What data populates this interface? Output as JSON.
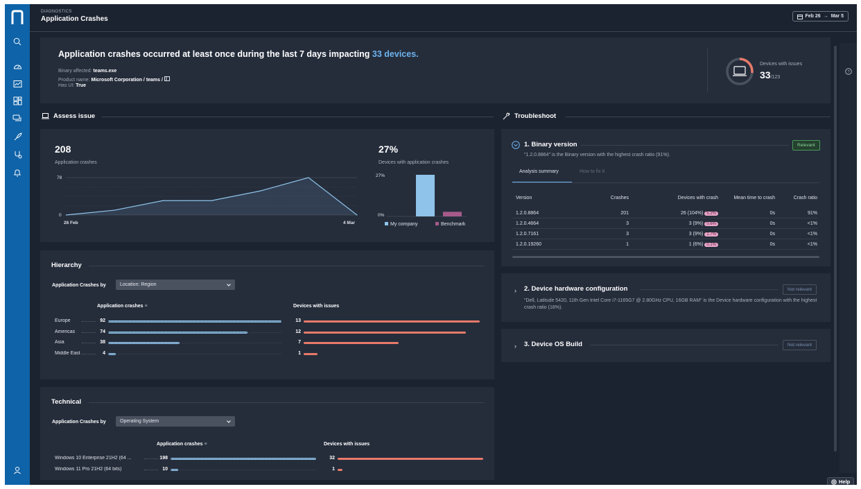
{
  "header": {
    "eyebrow": "DIAGNOSTICS",
    "title": "Application Crashes",
    "date_start": "Feb 26",
    "date_arrow": "→",
    "date_end": "Mar 5"
  },
  "summary": {
    "title_prefix": "Application crashes occurred at least once during the last 7 days impacting",
    "title_highlight": "33 devices.",
    "binary_label": "Binary affected:",
    "binary_value": "teams.exe",
    "product_label": "Product name:",
    "product_value": "Microsoft Corporation / teams /",
    "hasui_label": "Has UI:",
    "hasui_value": "True",
    "devices_label": "Devices with issues",
    "devices_count": "33",
    "devices_total": "/123",
    "devices_fraction": 0.268
  },
  "assess": {
    "heading": "Assess issue",
    "crashes_value": "208",
    "crashes_label": "Application crashes",
    "pct_value": "27%",
    "pct_label": "Devices with application crashes",
    "line_y_top": "78",
    "line_y_bottom": "0",
    "line_x_start": "26 Feb",
    "line_x_end": "4 Mar",
    "bar_y_top": "27%",
    "bar_y_bottom": "0%",
    "legend_mycompany": "My company",
    "legend_benchmark": "Benchmark"
  },
  "chart_data": [
    {
      "type": "line",
      "series": [
        {
          "values": [
            0,
            10,
            30,
            30,
            50,
            78,
            0
          ]
        }
      ],
      "ylim": [
        0,
        78
      ],
      "x_labels": [
        "26 Feb",
        "4 Mar"
      ]
    },
    {
      "type": "bar",
      "categories": [
        "My company",
        "Benchmark"
      ],
      "values": [
        27,
        3
      ],
      "ylim": [
        0,
        27
      ]
    }
  ],
  "hierarchy": {
    "heading": "Hierarchy",
    "by_label": "Application Crashes by",
    "select": "Location: Region",
    "col1": "Application crashes",
    "col2": "Devices with issues",
    "rows": [
      {
        "name": "Europe",
        "crashes": "92",
        "devices": "13"
      },
      {
        "name": "Americas",
        "crashes": "74",
        "devices": "12"
      },
      {
        "name": "Asia",
        "crashes": "38",
        "devices": "7"
      },
      {
        "name": "Middle East",
        "crashes": "4",
        "devices": "1"
      }
    ]
  },
  "technical": {
    "heading": "Technical",
    "by_label": "Application Crashes by",
    "select": "Operating System",
    "col1": "Application crashes",
    "col2": "Devices with issues",
    "rows": [
      {
        "name": "Windows 10 Enterprise 21H2 (64 ...",
        "crashes": "198",
        "devices": "32"
      },
      {
        "name": "Windows 11 Pro 21H2 (64 bits)",
        "crashes": "10",
        "devices": "1"
      }
    ]
  },
  "troubleshoot": {
    "heading": "Troubleshoot",
    "s1_title": "1. Binary version",
    "s1_badge": "Relevant",
    "s1_desc": "\"1.2.0.8864\" is the Binary version with the highest crash ratio (91%).",
    "tab_active": "Analysis summary",
    "tab_inactive": "How to fix it",
    "cols": [
      "Version",
      "Crashes",
      "Devices with crash",
      "Mean time to crash",
      "Crash ratio"
    ],
    "rows": [
      {
        "version": "1.2.0.8864",
        "crashes": "201",
        "devices": "26 (104%)",
        "pill": "5.2%",
        "mttc": "0s",
        "ratio": "91%"
      },
      {
        "version": "1.2.0.4664",
        "crashes": "3",
        "devices": "3 (9%)",
        "pill": "0.6%",
        "mttc": "0s",
        "ratio": "<1%"
      },
      {
        "version": "1.2.0.7161",
        "crashes": "3",
        "devices": "3 (9%)",
        "pill": "1.7%",
        "mttc": "0s",
        "ratio": "<1%"
      },
      {
        "version": "1.2.0.19260",
        "crashes": "1",
        "devices": "1 (6%)",
        "pill": "0.1%",
        "mttc": "0s",
        "ratio": "<1%"
      }
    ],
    "s2_title": "2. Device hardware configuration",
    "s2_badge": "Not relevant",
    "s2_desc": "\"Dell, Latitude 5420, 11th Gen Intel Core i7-1165G7 @ 2.80GHz CPU, 16GB RAM\" is the Device hardware configuration with the highest crash ratio (18%).",
    "s3_title": "3. Device OS Build",
    "s3_badge": "Not relevant"
  },
  "help_label": "Help"
}
